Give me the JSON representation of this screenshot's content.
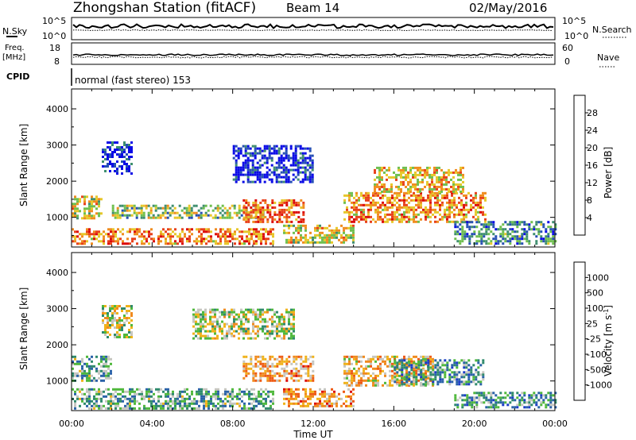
{
  "header": {
    "station": "Zhongshan Station (fitACF)",
    "beam": "Beam 14",
    "date": "02/May/2016"
  },
  "top_panels": {
    "nsky_label": "N.Sky",
    "nsky_ticks": [
      "10^5",
      "10^0"
    ],
    "nsearch_label": "N.Search",
    "nsearch_ticks": [
      "10^5",
      "10^0"
    ],
    "freq_label": "Freq.",
    "freq_unit": "[MHz]",
    "freq_ticks": [
      "18",
      "8"
    ],
    "nave_label": "Nave",
    "nave_ticks": [
      "60",
      "0"
    ],
    "cpid_label": "CPID",
    "cpid_text": "normal (fast stereo) 153"
  },
  "chart_data": [
    {
      "type": "heatmap",
      "panel": "power",
      "ylabel": "Slant Range [km]",
      "ylim": [
        180,
        4550
      ],
      "yticks": [
        "1000",
        "2000",
        "3000",
        "4000"
      ],
      "xlim_hours": [
        0,
        24
      ],
      "colorbar": {
        "label": "Power [dB]",
        "ticks": [
          "4",
          "8",
          "12",
          "16",
          "20",
          "24",
          "28"
        ],
        "colors": [
          "#0a0ae6",
          "#2650b4",
          "#3f8f6f",
          "#6fbf4f",
          "#e6c82a",
          "#f08c1e",
          "#e8401a",
          "#dc0a0a"
        ]
      },
      "regions": [
        {
          "t0": 0.0,
          "t1": 10.0,
          "r0": 250,
          "r1": 700,
          "level": 0.72
        },
        {
          "t0": 0.0,
          "t1": 1.5,
          "r0": 1000,
          "r1": 1600,
          "level": 0.55
        },
        {
          "t0": 1.5,
          "t1": 3.0,
          "r0": 2200,
          "r1": 3100,
          "level": 0.12
        },
        {
          "t0": 2.0,
          "t1": 9.5,
          "r0": 1000,
          "r1": 1350,
          "level": 0.45
        },
        {
          "t0": 8.5,
          "t1": 11.5,
          "r0": 900,
          "r1": 1500,
          "level": 0.75
        },
        {
          "t0": 8.0,
          "t1": 12.0,
          "r0": 2000,
          "r1": 3000,
          "level": 0.1
        },
        {
          "t0": 10.5,
          "t1": 14.0,
          "r0": 300,
          "r1": 800,
          "level": 0.55
        },
        {
          "t0": 13.5,
          "t1": 20.5,
          "r0": 900,
          "r1": 1700,
          "level": 0.7
        },
        {
          "t0": 15.0,
          "t1": 19.5,
          "r0": 1700,
          "r1": 2400,
          "level": 0.6
        },
        {
          "t0": 19.0,
          "t1": 24.0,
          "r0": 300,
          "r1": 900,
          "level": 0.3
        }
      ]
    },
    {
      "type": "heatmap",
      "panel": "velocity",
      "ylabel": "Slant Range [km]",
      "ylim": [
        180,
        4550
      ],
      "yticks": [
        "1000",
        "2000",
        "3000",
        "4000"
      ],
      "xlim_hours": [
        0,
        24
      ],
      "xticks": [
        "00:00",
        "04:00",
        "08:00",
        "12:00",
        "16:00",
        "20:00",
        "00:00"
      ],
      "xlabel": "Time UT",
      "colorbar": {
        "label": "Velocity [m s",
        "label_sup": "-1",
        "label_end": "]",
        "ticks": [
          "1000",
          "500",
          "100",
          "25",
          "-25",
          "-100",
          "-500",
          "-1000"
        ],
        "colors": [
          "#1a3cc8",
          "#2a62a8",
          "#2f8a6c",
          "#4fb83c",
          "#c6c6c0",
          "#f0b21a",
          "#f08a1e",
          "#ee5a14",
          "#dc0a0a"
        ]
      },
      "regions": [
        {
          "t0": 0.0,
          "t1": 10.0,
          "r0": 250,
          "r1": 800,
          "level": 0.35
        },
        {
          "t0": 0.0,
          "t1": 2.0,
          "r0": 1000,
          "r1": 1700,
          "level": 0.35
        },
        {
          "t0": 1.5,
          "t1": 3.0,
          "r0": 2200,
          "r1": 3100,
          "level": 0.5
        },
        {
          "t0": 6.0,
          "t1": 11.0,
          "r0": 2200,
          "r1": 3000,
          "level": 0.5
        },
        {
          "t0": 8.5,
          "t1": 12.0,
          "r0": 1000,
          "r1": 1700,
          "level": 0.68
        },
        {
          "t0": 10.5,
          "t1": 14.0,
          "r0": 300,
          "r1": 800,
          "level": 0.72
        },
        {
          "t0": 13.5,
          "t1": 18.0,
          "r0": 900,
          "r1": 1700,
          "level": 0.62
        },
        {
          "t0": 16.0,
          "t1": 20.5,
          "r0": 900,
          "r1": 1600,
          "level": 0.3
        },
        {
          "t0": 19.0,
          "t1": 24.0,
          "r0": 300,
          "r1": 700,
          "level": 0.3
        }
      ]
    }
  ]
}
